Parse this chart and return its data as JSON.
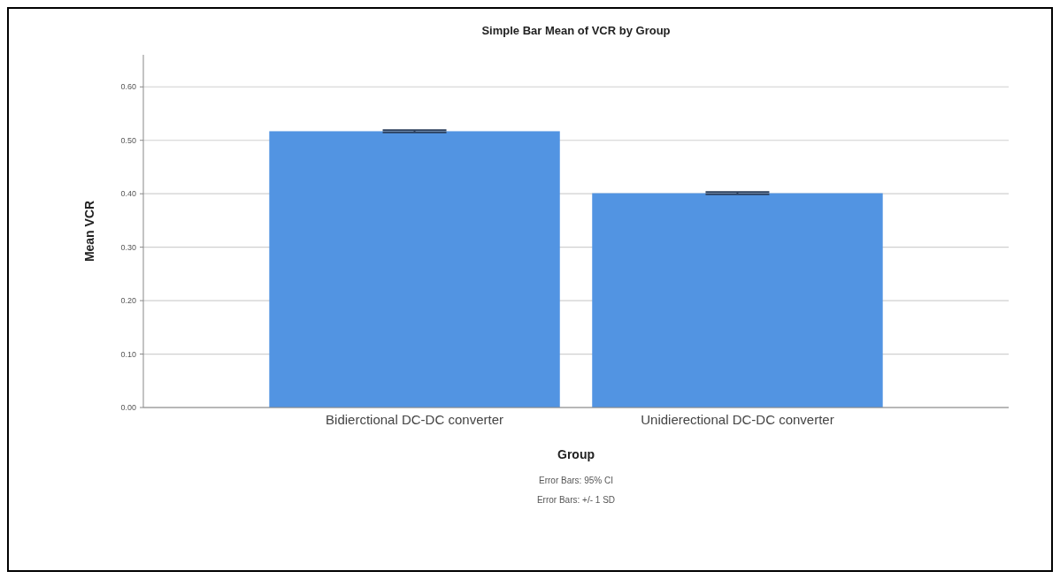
{
  "chart_data": {
    "type": "bar",
    "title": "Simple Bar Mean of VCR by Group",
    "xlabel": "Group",
    "ylabel": "Mean VCR",
    "categories": [
      "Bidierctional DC-DC converter",
      "Unidierectional DC-DC converter"
    ],
    "values": [
      0.517,
      0.401
    ],
    "errors": [
      0.002,
      0.002
    ],
    "color": "#5294e2",
    "ylim": [
      0,
      0.66
    ],
    "yticks": [
      {
        "value": 0,
        "label": "0.00"
      },
      {
        "value": 0.1,
        "label": "0.10"
      },
      {
        "value": 0.2,
        "label": "0.20"
      },
      {
        "value": 0.3,
        "label": "0.30"
      },
      {
        "value": 0.4,
        "label": "0.40"
      },
      {
        "value": 0.5,
        "label": "0.50"
      },
      {
        "value": 0.6,
        "label": "0.60"
      }
    ],
    "grid": "y",
    "annotations": [
      "Error Bars: 95% CI",
      "Error Bars: +/- 1 SD"
    ]
  }
}
